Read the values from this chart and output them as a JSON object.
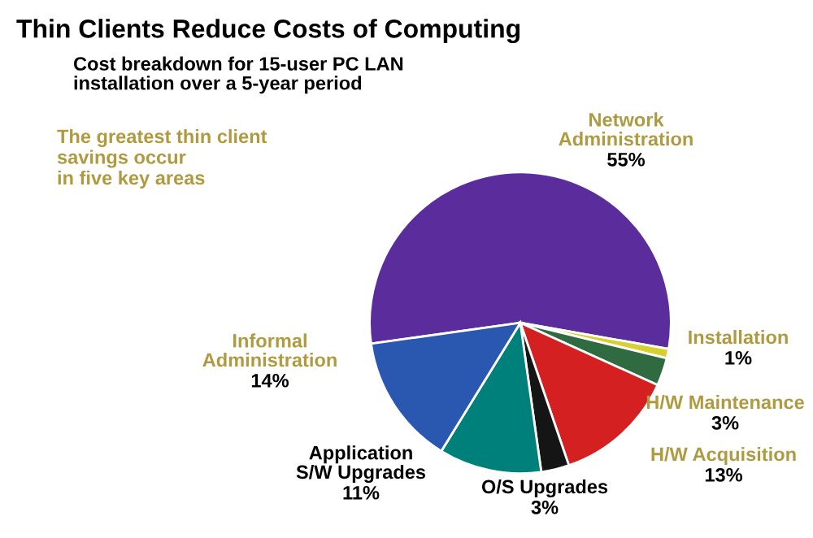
{
  "chart_data": {
    "type": "pie",
    "title": "Thin Clients Reduce Costs of Computing",
    "subtitle": "Cost breakdown for 15-user PC LAN\ninstallation over a 5-year period",
    "categories": [
      "Network\nAdministration",
      "Installation",
      "H/W Maintenance",
      "H/W Acquisition",
      "O/S Upgrades",
      "Application\nS/W Upgrades",
      "Informal\nAdministration"
    ],
    "values": [
      55,
      1,
      3,
      13,
      3,
      11,
      14
    ],
    "colors": [
      "#5b2d9c",
      "#d8d030",
      "#2f6a40",
      "#d42020",
      "#151515",
      "#00807a",
      "#2a58b0"
    ],
    "value_labels": [
      "55%",
      "1%",
      "3%",
      "13%",
      "3%",
      "11%",
      "14%"
    ],
    "annotations": [
      "The greatest thin client\nsavings occur\nin five key areas"
    ]
  }
}
